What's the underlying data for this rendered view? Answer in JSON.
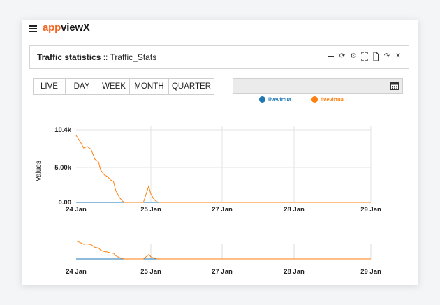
{
  "app": {
    "logo_part1": "app",
    "logo_part2": "viewX"
  },
  "panel": {
    "title_bold": "Traffic statistics",
    "title_sep": " :: ",
    "title_name": "Traffic_Stats"
  },
  "toolbar_icons": [
    "minimize-icon",
    "refresh-icon",
    "settings-icon",
    "expand-icon",
    "export-icon",
    "share-icon",
    "close-icon"
  ],
  "ranges": [
    "LIVE",
    "DAY",
    "WEEK",
    "MONTH",
    "QUARTER"
  ],
  "date_picker": {
    "value": ""
  },
  "legend": [
    {
      "name": "livevirtua..",
      "color": "#1f77b4"
    },
    {
      "name": "livevirtua..",
      "color": "#ff7f0e"
    }
  ],
  "chart_data": {
    "type": "line",
    "ylabel": "Values",
    "xlabel": "",
    "y_ticks": [
      "10.4k",
      "5.00k",
      "0.00"
    ],
    "x_ticks": [
      "24 Jan",
      "25 Jan",
      "27 Jan",
      "28 Jan",
      "29 Jan"
    ],
    "navigator_x_ticks": [
      "24 Jan",
      "25 Jan",
      "27 Jan",
      "28 Jan",
      "29 Jan"
    ],
    "ylim": [
      0,
      10400
    ],
    "grid": true,
    "series": [
      {
        "name": "livevirtua..",
        "color": "#1f77b4",
        "x": [
          0,
          1,
          2,
          3,
          4
        ],
        "values": [
          0,
          0,
          0,
          0,
          0
        ]
      },
      {
        "name": "livevirtua..",
        "color": "#ff7f0e",
        "x": [
          0,
          0.06,
          0.1,
          0.15,
          0.2,
          0.25,
          0.3,
          0.33,
          0.38,
          0.42,
          0.46,
          0.5,
          0.53,
          0.58,
          0.62,
          0.65,
          0.7,
          0.8,
          0.9,
          0.97,
          1.0,
          1.04,
          1.08,
          1.12,
          1.2,
          1.5,
          2,
          3,
          4
        ],
        "values": [
          9600,
          8600,
          7800,
          8000,
          7600,
          6200,
          5800,
          4600,
          3900,
          3700,
          3200,
          3000,
          1700,
          700,
          200,
          0,
          0,
          0,
          0,
          2300,
          1200,
          500,
          100,
          0,
          0,
          0,
          0,
          0,
          0
        ]
      }
    ]
  }
}
